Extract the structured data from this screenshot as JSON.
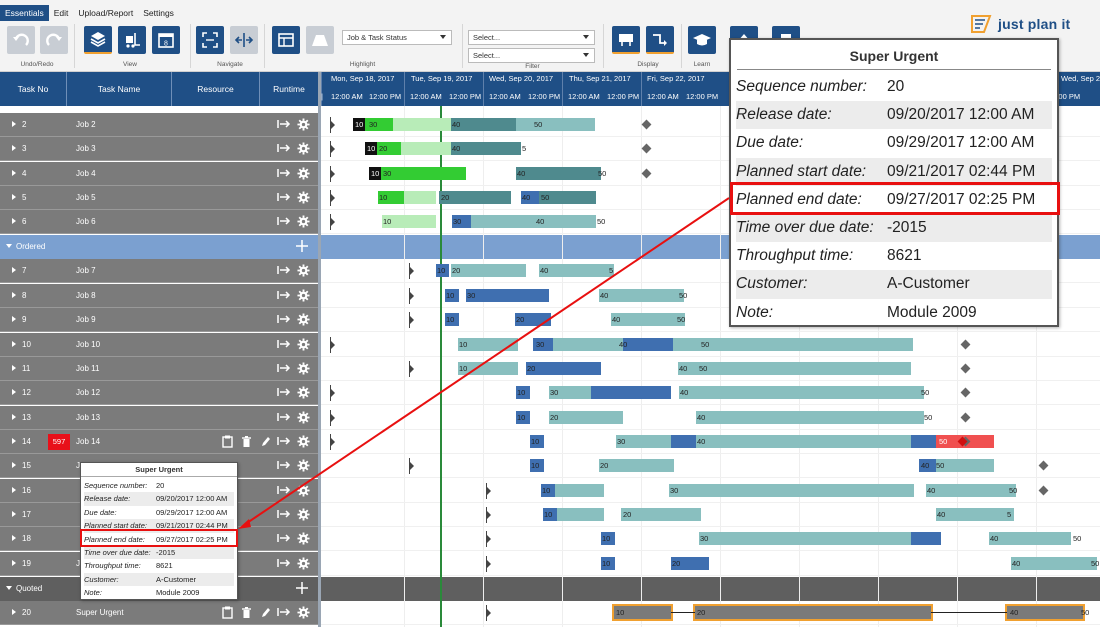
{
  "colors": {
    "ribbon_bg": "#f3f3f3",
    "header_blue": "#1f4f86",
    "row_gray": "#7b7b7b",
    "group_ordered": "#7ba0d0",
    "group_quoted": "#5f5f5f",
    "gantt_dark_blue": "#3f6fb0",
    "gantt_teal": "#89bfbf",
    "gantt_dark_teal": "#4f8a8e",
    "gantt_green": "#33cc33",
    "gantt_light_green": "#b8ecb8",
    "gantt_red": "#f05050",
    "highlight_red": "#e81010",
    "now_line": "#2a8a3a",
    "quoted_bar": "#7a7a7a",
    "quoted_outline": "#f0a030"
  },
  "menu": {
    "tabs": [
      "Essentials",
      "Edit",
      "Upload/Report",
      "Settings"
    ],
    "active": "Essentials"
  },
  "ribbon": {
    "groups": {
      "undo_redo": "Undo/Redo",
      "view": "View",
      "navigate": "Navigate",
      "highlight": "Highlight",
      "filter": "Filter",
      "display": "Display",
      "learn": "Learn"
    },
    "highlight_select": "Job & Task Status",
    "filter_select_1": "Select...",
    "filter_select_2": "Select..."
  },
  "logo": {
    "text": "just plan it"
  },
  "grid": {
    "columns": [
      "Task No",
      "Task Name",
      "Resource",
      "Runtime"
    ]
  },
  "gantt_header": {
    "days": [
      "Mon, Sep 18, 2017",
      "Tue, Sep 19, 2017",
      "Wed, Sep 20, 2017",
      "Thu, Sep 21, 2017",
      "Fri, Sep 22, 2017",
      "Wed, Sep 27, 20"
    ],
    "times": [
      "12:00 AM",
      "12:00 PM"
    ]
  },
  "groups": {
    "ordered": "Ordered",
    "quoted": "Quoted"
  },
  "jobs": [
    {
      "no": "2",
      "name": "Job 2"
    },
    {
      "no": "3",
      "name": "Job 3"
    },
    {
      "no": "4",
      "name": "Job 4"
    },
    {
      "no": "5",
      "name": "Job 5"
    },
    {
      "no": "6",
      "name": "Job 6"
    },
    {
      "no": "7",
      "name": "Job 7"
    },
    {
      "no": "8",
      "name": "Job 8"
    },
    {
      "no": "9",
      "name": "Job 9"
    },
    {
      "no": "10",
      "name": "Job 10"
    },
    {
      "no": "11",
      "name": "Job 11"
    },
    {
      "no": "12",
      "name": "Job 12"
    },
    {
      "no": "13",
      "name": "Job 13"
    },
    {
      "no": "14",
      "name": "Job 14",
      "tag": "597"
    },
    {
      "no": "15",
      "name": "Jo"
    },
    {
      "no": "16",
      "name": ""
    },
    {
      "no": "17",
      "name": ""
    },
    {
      "no": "18",
      "name": ""
    },
    {
      "no": "19",
      "name": "Jo"
    },
    {
      "no": "20",
      "name": "Super Urgent"
    }
  ],
  "bar_labels": {
    "j2": [
      "10",
      "30",
      "40",
      "50"
    ],
    "j3": [
      "10",
      "20",
      "40",
      "5"
    ],
    "j4": [
      "10",
      "30",
      "40",
      "50"
    ],
    "j5": [
      "10",
      "20",
      "40",
      "50"
    ],
    "j6": [
      "10",
      "30",
      "40",
      "50"
    ],
    "j7": [
      "10",
      "20",
      "40",
      "5"
    ],
    "j8": [
      "10",
      "30",
      "40",
      "50"
    ],
    "j9": [
      "10",
      "20",
      "40",
      "50"
    ],
    "j10": [
      "10",
      "30",
      "40",
      "50"
    ],
    "j11": [
      "10",
      "20",
      "40",
      "50"
    ],
    "j12": [
      "10",
      "30",
      "40",
      "50"
    ],
    "j13": [
      "10",
      "20",
      "40",
      "50"
    ],
    "j14": [
      "10",
      "30",
      "40",
      "50"
    ],
    "j15": [
      "10",
      "20",
      "40",
      "50"
    ],
    "j16": [
      "10",
      "30",
      "40",
      "50"
    ],
    "j17": [
      "10",
      "20",
      "40",
      "5"
    ],
    "j18": [
      "10",
      "30",
      "40",
      "50"
    ],
    "j19": [
      "10",
      "20",
      "40",
      "50"
    ],
    "j20": [
      "10",
      "20",
      "40",
      "50"
    ]
  },
  "tooltip": {
    "title": "Super Urgent",
    "rows": [
      {
        "k": "Sequence number:",
        "v": "20"
      },
      {
        "k": "Release date:",
        "v": "09/20/2017 12:00 AM"
      },
      {
        "k": "Due date:",
        "v": "09/29/2017 12:00 AM"
      },
      {
        "k": "Planned start date:",
        "v": "09/21/2017 02:44 PM"
      },
      {
        "k": "Planned end date:",
        "v": "09/27/2017 02:25 PM"
      },
      {
        "k": "Time over due date:",
        "v": "-2015"
      },
      {
        "k": "Throughput time:",
        "v": "8621"
      },
      {
        "k": "Customer:",
        "v": "A-Customer"
      },
      {
        "k": "Note:",
        "v": "Module 2009"
      }
    ]
  }
}
